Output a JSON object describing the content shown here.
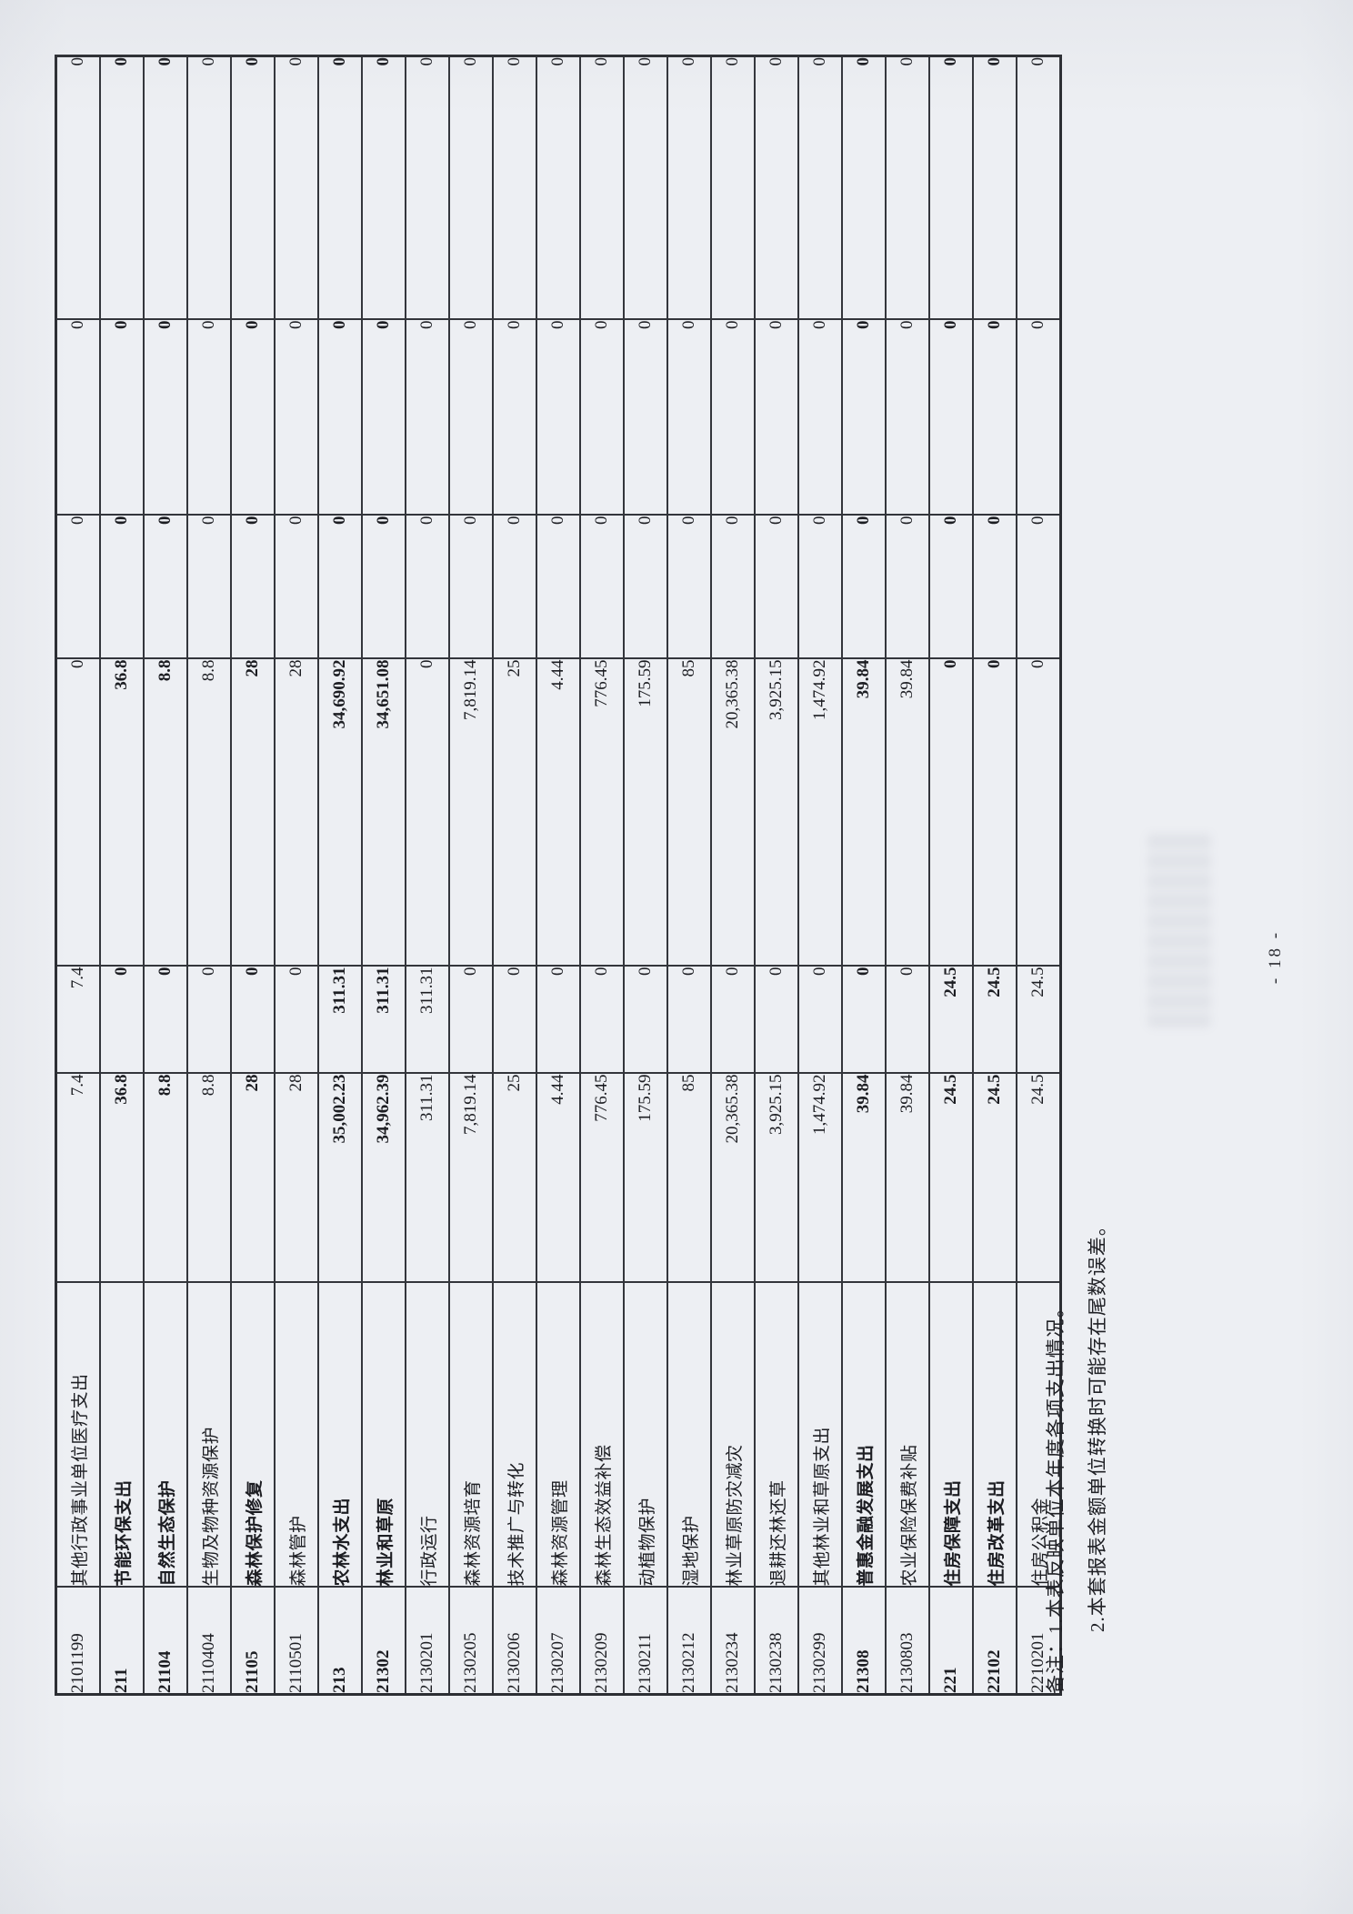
{
  "page": {
    "page_number": "- 18 -",
    "notes": [
      "备注：1.本表反映单位本年度各项支出情况。",
      "2.本套报表金额单位转换时可能存在尾数误差。"
    ]
  },
  "table": {
    "rows": [
      {
        "code": "2101199",
        "name": "其他行政事业单位医疗支出",
        "bold": false,
        "amounts": [
          "7.4",
          "7.4",
          "0",
          "0",
          "0",
          "0"
        ]
      },
      {
        "code": "211",
        "name": "节能环保支出",
        "bold": true,
        "amounts": [
          "36.8",
          "0",
          "36.8",
          "0",
          "0",
          "0"
        ]
      },
      {
        "code": "21104",
        "name": "自然生态保护",
        "bold": true,
        "amounts": [
          "8.8",
          "0",
          "8.8",
          "0",
          "0",
          "0"
        ]
      },
      {
        "code": "2110404",
        "name": "生物及物种资源保护",
        "bold": false,
        "amounts": [
          "8.8",
          "0",
          "8.8",
          "0",
          "0",
          "0"
        ]
      },
      {
        "code": "21105",
        "name": "森林保护修复",
        "bold": true,
        "amounts": [
          "28",
          "0",
          "28",
          "0",
          "0",
          "0"
        ]
      },
      {
        "code": "2110501",
        "name": "森林管护",
        "bold": false,
        "amounts": [
          "28",
          "0",
          "28",
          "0",
          "0",
          "0"
        ]
      },
      {
        "code": "213",
        "name": "农林水支出",
        "bold": true,
        "amounts": [
          "35,002.23",
          "311.31",
          "34,690.92",
          "0",
          "0",
          "0"
        ]
      },
      {
        "code": "21302",
        "name": "林业和草原",
        "bold": true,
        "amounts": [
          "34,962.39",
          "311.31",
          "34,651.08",
          "0",
          "0",
          "0"
        ]
      },
      {
        "code": "2130201",
        "name": "行政运行",
        "bold": false,
        "amounts": [
          "311.31",
          "311.31",
          "0",
          "0",
          "0",
          "0"
        ]
      },
      {
        "code": "2130205",
        "name": "森林资源培育",
        "bold": false,
        "amounts": [
          "7,819.14",
          "0",
          "7,819.14",
          "0",
          "0",
          "0"
        ]
      },
      {
        "code": "2130206",
        "name": "技术推广与转化",
        "bold": false,
        "amounts": [
          "25",
          "0",
          "25",
          "0",
          "0",
          "0"
        ]
      },
      {
        "code": "2130207",
        "name": "森林资源管理",
        "bold": false,
        "amounts": [
          "4.44",
          "0",
          "4.44",
          "0",
          "0",
          "0"
        ]
      },
      {
        "code": "2130209",
        "name": "森林生态效益补偿",
        "bold": false,
        "amounts": [
          "776.45",
          "0",
          "776.45",
          "0",
          "0",
          "0"
        ]
      },
      {
        "code": "2130211",
        "name": "动植物保护",
        "bold": false,
        "amounts": [
          "175.59",
          "0",
          "175.59",
          "0",
          "0",
          "0"
        ]
      },
      {
        "code": "2130212",
        "name": "湿地保护",
        "bold": false,
        "amounts": [
          "85",
          "0",
          "85",
          "0",
          "0",
          "0"
        ]
      },
      {
        "code": "2130234",
        "name": "林业草原防灾减灾",
        "bold": false,
        "amounts": [
          "20,365.38",
          "0",
          "20,365.38",
          "0",
          "0",
          "0"
        ]
      },
      {
        "code": "2130238",
        "name": "退耕还林还草",
        "bold": false,
        "amounts": [
          "3,925.15",
          "0",
          "3,925.15",
          "0",
          "0",
          "0"
        ]
      },
      {
        "code": "2130299",
        "name": "其他林业和草原支出",
        "bold": false,
        "amounts": [
          "1,474.92",
          "0",
          "1,474.92",
          "0",
          "0",
          "0"
        ]
      },
      {
        "code": "21308",
        "name": "普惠金融发展支出",
        "bold": true,
        "amounts": [
          "39.84",
          "0",
          "39.84",
          "0",
          "0",
          "0"
        ]
      },
      {
        "code": "2130803",
        "name": "农业保险保费补贴",
        "bold": false,
        "amounts": [
          "39.84",
          "0",
          "39.84",
          "0",
          "0",
          "0"
        ]
      },
      {
        "code": "221",
        "name": "住房保障支出",
        "bold": true,
        "amounts": [
          "24.5",
          "24.5",
          "0",
          "0",
          "0",
          "0"
        ]
      },
      {
        "code": "22102",
        "name": "住房改革支出",
        "bold": true,
        "amounts": [
          "24.5",
          "24.5",
          "0",
          "0",
          "0",
          "0"
        ]
      },
      {
        "code": "2210201",
        "name": "住房公积金",
        "bold": false,
        "amounts": [
          "24.5",
          "24.5",
          "0",
          "0",
          "0",
          "0"
        ]
      }
    ]
  }
}
